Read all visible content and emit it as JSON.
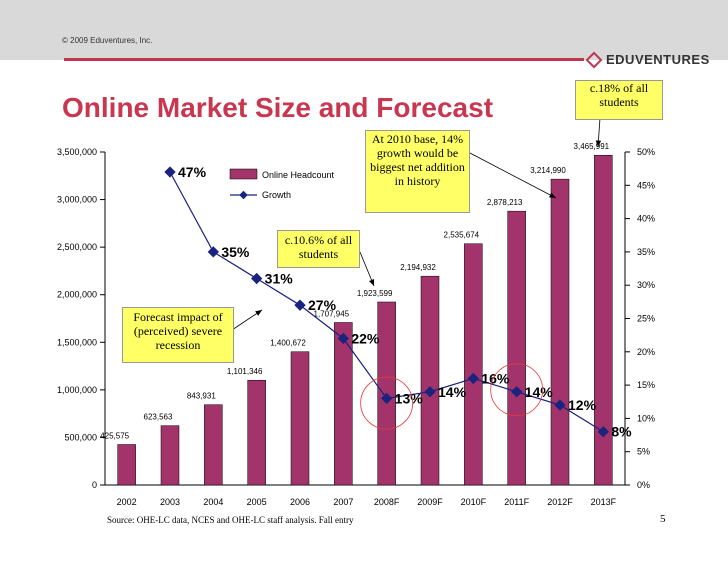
{
  "header": {
    "copyright": "© 2009 Eduventures, Inc.",
    "logo": "EDUVENTURES"
  },
  "title": "Online Market Size and Forecast",
  "notes": {
    "top_right": "c.18% of all students",
    "mid_top": "At 2010 base, 14% growth would be biggest net addition in history",
    "mid": "c.10.6% of all students",
    "left": "Forecast impact of (perceived) severe recession"
  },
  "source": "Source: OHE-LC data, NCES and OHE-LC staff analysis. Fall entry",
  "page_number": "5",
  "colors": {
    "bar": "#a3346b",
    "line": "#1a237e",
    "title": "#c8364f",
    "note_bg": "#ffff66",
    "circle": "#e53935"
  },
  "chart_data": {
    "type": "bar",
    "categories": [
      "2002",
      "2003",
      "2004",
      "2005",
      "2006",
      "2007",
      "2008F",
      "2009F",
      "2010F",
      "2011F",
      "2012F",
      "2013F"
    ],
    "series": [
      {
        "name": "Online Headcount",
        "type": "bar",
        "values": [
          425575,
          623563,
          843931,
          1101346,
          1400672,
          1707945,
          1923599,
          2194932,
          2535674,
          2878213,
          3214990,
          3465991
        ],
        "labels": [
          "425,575",
          "623,563",
          "843,931",
          "1,101,346",
          "1,400,672",
          "1,707,945",
          "1,923,599",
          "2,194,932",
          "2,535,674",
          "2,878,213",
          "3,214,990",
          "3,465,991"
        ]
      },
      {
        "name": "Growth",
        "type": "line",
        "axis": "right",
        "values": [
          null,
          47,
          35,
          31,
          27,
          22,
          13,
          14,
          16,
          14,
          12,
          8
        ],
        "labels": [
          "",
          "47%",
          "35%",
          "31%",
          "27%",
          "22%",
          "13%",
          "14%",
          "16%",
          "14%",
          "12%",
          "8%"
        ]
      }
    ],
    "y_left": {
      "min": 0,
      "max": 3500000,
      "ticks": [
        "0",
        "500,000",
        "1,000,000",
        "1,500,000",
        "2,000,000",
        "2,500,000",
        "3,000,000",
        "3,500,000"
      ]
    },
    "y_right": {
      "min": 0,
      "max": 50,
      "ticks": [
        "0%",
        "5%",
        "10%",
        "15%",
        "20%",
        "25%",
        "30%",
        "35%",
        "40%",
        "45%",
        "50%"
      ]
    },
    "legend": [
      "Online Headcount",
      "Growth"
    ]
  }
}
